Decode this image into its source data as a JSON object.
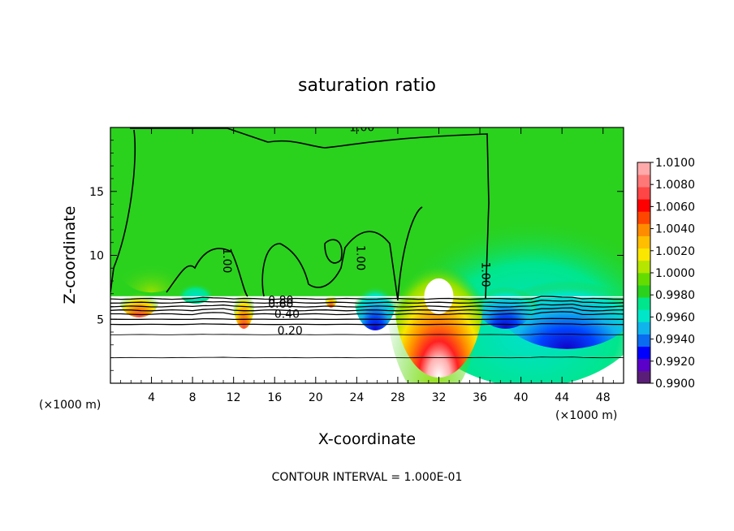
{
  "chart_data": {
    "type": "heatmap",
    "title": "saturation ratio",
    "xlabel": "X-coordinate",
    "ylabel": "Z-coordinate",
    "x_unit_left": "(×1000 m)",
    "x_unit_right": "(×1000 m)",
    "xlim": [
      0,
      50
    ],
    "ylim": [
      0,
      20
    ],
    "x_ticks": [
      4,
      8,
      12,
      16,
      20,
      24,
      28,
      32,
      36,
      40,
      44,
      48
    ],
    "y_ticks": [
      5,
      10,
      15
    ],
    "colorbar": {
      "min": 0.99,
      "max": 1.01,
      "labels": [
        "1.0100",
        "1.0080",
        "1.0060",
        "1.0040",
        "1.0020",
        "1.0000",
        "0.9980",
        "0.9960",
        "0.9940",
        "0.9920",
        "0.9900"
      ],
      "colors": [
        "#5a1e78",
        "#5a00c8",
        "#0000ff",
        "#0a6cf0",
        "#10b4ec",
        "#00e6c8",
        "#00e68c",
        "#2ad21e",
        "#64dc00",
        "#b4e600",
        "#fae600",
        "#ffbe00",
        "#ff8c00",
        "#ff4600",
        "#ff0000",
        "#ff4646",
        "#ff7878",
        "#ffaaaa"
      ]
    },
    "contour_labels": [
      {
        "text": "1.00",
        "x": 24.5,
        "z": 19.7
      },
      {
        "text": "1.00",
        "x": 11.0,
        "z": 9.6
      },
      {
        "text": "1.00",
        "x": 24.0,
        "z": 9.8
      },
      {
        "text": "1.00",
        "x": 36.2,
        "z": 8.5
      },
      {
        "text": "0.80",
        "x": 16.6,
        "z": 6.2
      },
      {
        "text": "0.60",
        "x": 16.6,
        "z": 5.9
      },
      {
        "text": "0.40",
        "x": 17.2,
        "z": 5.1
      },
      {
        "text": "0.20",
        "x": 17.5,
        "z": 3.8
      }
    ],
    "subsaturated_contour_levels": [
      0.2,
      0.4,
      0.6,
      0.8
    ],
    "footer": "CONTOUR INTERVAL = 1.000E-01"
  }
}
